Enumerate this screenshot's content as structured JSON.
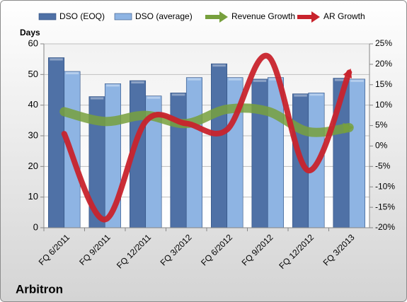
{
  "chart_data": {
    "type": "bar",
    "title": "Arbitron",
    "y_axis_label": "Days",
    "categories": [
      "FQ 6/2011",
      "FQ 9/2011",
      "FQ 12/2011",
      "FQ 3/2012",
      "FQ 6/2012",
      "FQ 9/2012",
      "FQ 12/2012",
      "FQ 3/2013"
    ],
    "series": [
      {
        "name": "DSO (EOQ)",
        "type": "bar",
        "color": "#4f71a6",
        "values": [
          55.5,
          42.8,
          48,
          44,
          53.5,
          48.5,
          43.7,
          48.8
        ]
      },
      {
        "name": "DSO (average)",
        "type": "bar",
        "color": "#8eb4e3",
        "values": [
          51,
          47,
          43,
          49,
          49,
          49,
          44,
          48.5
        ]
      },
      {
        "name": "Revenue Growth",
        "type": "line",
        "axis": "y2",
        "color": "#77a03d",
        "values": [
          8.4,
          6,
          7.5,
          5.5,
          9,
          8.5,
          3.5,
          4.5
        ]
      },
      {
        "name": "AR Growth",
        "type": "line",
        "axis": "y2",
        "color": "#c8232c",
        "values": [
          3,
          -18,
          6,
          5.5,
          4,
          22,
          -6,
          18
        ]
      }
    ],
    "ylim": [
      0,
      60
    ],
    "yticks": [
      0,
      10,
      20,
      30,
      40,
      50,
      60
    ],
    "y2lim": [
      -20,
      25
    ],
    "y2ticks": [
      {
        "value": -20,
        "label": "-20%"
      },
      {
        "value": -15,
        "label": "-15%"
      },
      {
        "value": -10,
        "label": "-10%"
      },
      {
        "value": -5,
        "label": "-5%"
      },
      {
        "value": 0,
        "label": "0%"
      },
      {
        "value": 5,
        "label": "5%"
      },
      {
        "value": 10,
        "label": "10%"
      },
      {
        "value": 15,
        "label": "15%"
      },
      {
        "value": 20,
        "label": "20%"
      },
      {
        "value": 25,
        "label": "25%"
      }
    ],
    "grid": true
  }
}
